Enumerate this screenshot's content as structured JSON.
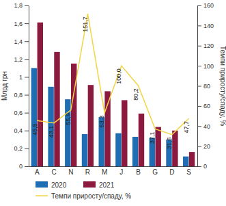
{
  "chart_data": {
    "type": "bar",
    "y_label": "Млрд грн",
    "y2_label": "Темпи приросту/спаду, %",
    "categories": [
      "A",
      "C",
      "N",
      "R",
      "M",
      "J",
      "B",
      "G",
      "D",
      "S"
    ],
    "series": [
      {
        "name": "2020",
        "color": "#1f6db3",
        "values": [
          1.1,
          0.89,
          0.75,
          0.36,
          0.55,
          0.37,
          0.33,
          0.32,
          0.3,
          0.11
        ]
      },
      {
        "name": "2021",
        "color": "#8c1a3e",
        "values": [
          1.61,
          1.28,
          1.15,
          0.91,
          0.84,
          0.74,
          0.59,
          0.44,
          0.4,
          0.16
        ]
      },
      {
        "name": "Темпи приросту/спаду, %",
        "type": "line",
        "axis": "y2",
        "color": "#f2d544",
        "marker": "none",
        "data_labels": true,
        "values": [
          45.5,
          43.1,
          55.9,
          151.7,
          53.3,
          100.0,
          80.2,
          37.1,
          31.6,
          47.7
        ],
        "value_labels": [
          "45,5",
          "43,1",
          "55,9",
          "151,7",
          "53,3",
          "100,0",
          "80,2",
          "37,1",
          "31,6",
          "47,7"
        ]
      }
    ],
    "ylim": [
      0,
      1.8
    ],
    "yticks": [
      0,
      {
        "value": 0.2,
        "label": "0,2"
      },
      {
        "value": 0.4,
        "label": "0,4"
      },
      {
        "value": 0.6,
        "label": "0,6"
      },
      {
        "value": 0.8,
        "label": "0,8"
      },
      1,
      {
        "value": 1.2,
        "label": "1,2"
      },
      {
        "value": 1.4,
        "label": "1,4"
      },
      {
        "value": 1.6,
        "label": "1,6"
      },
      {
        "value": 1.8,
        "label": "1,8"
      }
    ],
    "y2lim": [
      0,
      160
    ],
    "y2ticks": [
      0,
      20,
      40,
      60,
      80,
      100,
      120,
      140,
      160
    ],
    "grid": false,
    "legend": "bottom"
  }
}
